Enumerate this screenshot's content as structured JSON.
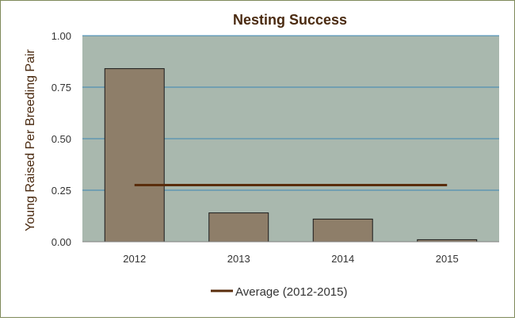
{
  "chart_data": {
    "type": "bar",
    "title": "Nesting Success",
    "xlabel": "",
    "ylabel": "Young Raised  Per Breeding  Pair",
    "categories": [
      "2012",
      "2013",
      "2014",
      "2015"
    ],
    "series": [
      {
        "values": [
          0.84,
          0.14,
          0.11,
          0.01
        ]
      }
    ],
    "average_line": {
      "name": "Average (2012-2015)",
      "value": 0.275,
      "color": "#5a2d0c"
    },
    "ylim": [
      0,
      1.0
    ],
    "yticks": [
      "0.00",
      "0.25",
      "0.50",
      "0.75",
      "1.00"
    ],
    "grid": true,
    "legend_position": "bottom",
    "colors": {
      "bar_fill": "#8e7e69",
      "bar_stroke": "#1a1a1a",
      "plot_background": "#a9b8ae",
      "gridline": "#3a86b4",
      "title": "#4a2a10",
      "text": "#333333"
    }
  }
}
